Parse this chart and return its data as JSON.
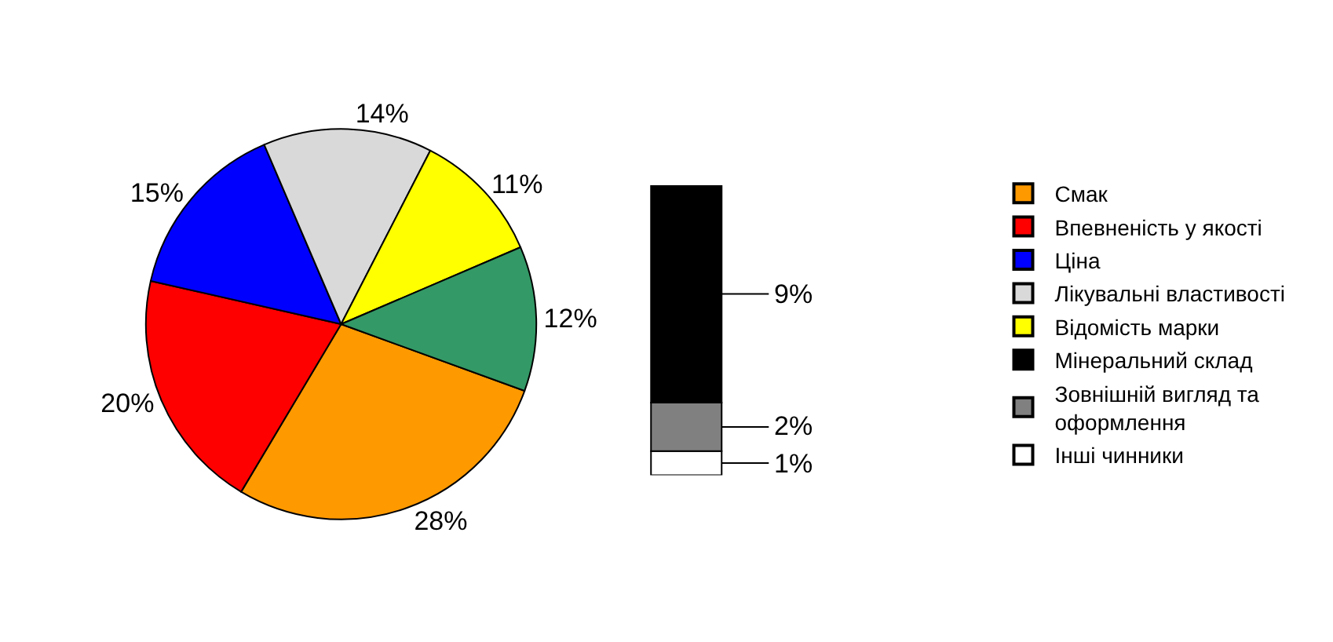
{
  "chart_data": [
    {
      "type": "pie",
      "categories": [
        "Смак",
        "Впевненість у якості",
        "Ціна",
        "Лікувальні властивості",
        "Відомість марки",
        null
      ],
      "values": [
        28,
        20,
        15,
        14,
        11,
        12
      ],
      "colors": [
        "#ff9900",
        "#ff0000",
        "#0000ff",
        "#d9d9d9",
        "#ffff00",
        "#339966"
      ],
      "value_labels": [
        "28%",
        "20%",
        "15%",
        "14%",
        "11%",
        "12%"
      ],
      "legend": "right"
    },
    {
      "type": "bar",
      "stacked": true,
      "categories": [
        null
      ],
      "series": [
        {
          "name": "Інші чинники",
          "color": "#ffffff",
          "values": [
            1
          ],
          "value_labels": [
            "1%"
          ]
        },
        {
          "name": "Зовнішній вигляд та оформлення",
          "color": "#808080",
          "values": [
            2
          ],
          "value_labels": [
            "2%"
          ]
        },
        {
          "name": "Мінеральний склад",
          "color": "#000000",
          "values": [
            9
          ],
          "value_labels": [
            "9%"
          ]
        }
      ],
      "legend": "right"
    }
  ]
}
